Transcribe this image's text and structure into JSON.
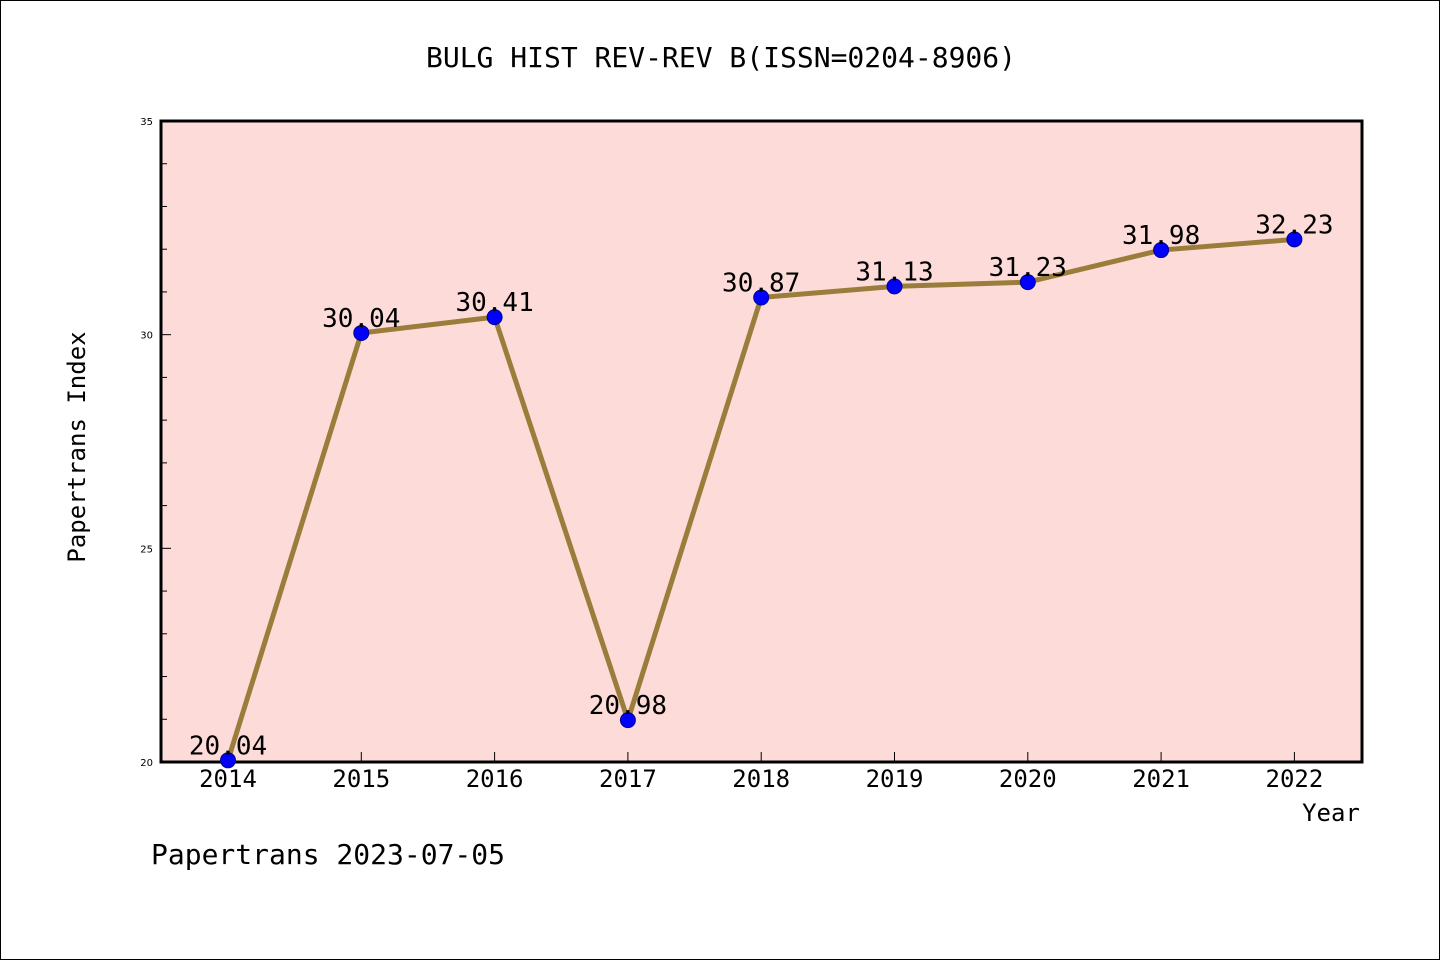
{
  "chart_data": {
    "type": "line",
    "title": "BULG HIST REV-REV B(ISSN=0204-8906)",
    "xlabel": "Year",
    "ylabel": "Papertrans Index",
    "categories": [
      "2014",
      "2015",
      "2016",
      "2017",
      "2018",
      "2019",
      "2020",
      "2021",
      "2022"
    ],
    "series": [
      {
        "values": [
          20.04,
          30.04,
          30.41,
          20.98,
          30.87,
          31.13,
          31.23,
          31.98,
          32.23
        ],
        "labels": [
          "20.04",
          "30.04",
          "30.41",
          "20.98",
          "30.87",
          "31.13",
          "31.23",
          "31.98",
          "32.23"
        ]
      }
    ],
    "ylim": [
      20,
      35
    ],
    "y_ticks": [
      "20",
      "25",
      "30",
      "35"
    ],
    "y_minor_step": 1,
    "line_color": "#9a7d3a",
    "marker_color": "#0000ff",
    "plot_background": "#fddbd8",
    "grid": false,
    "footer": "Papertrans 2023-07-05"
  }
}
